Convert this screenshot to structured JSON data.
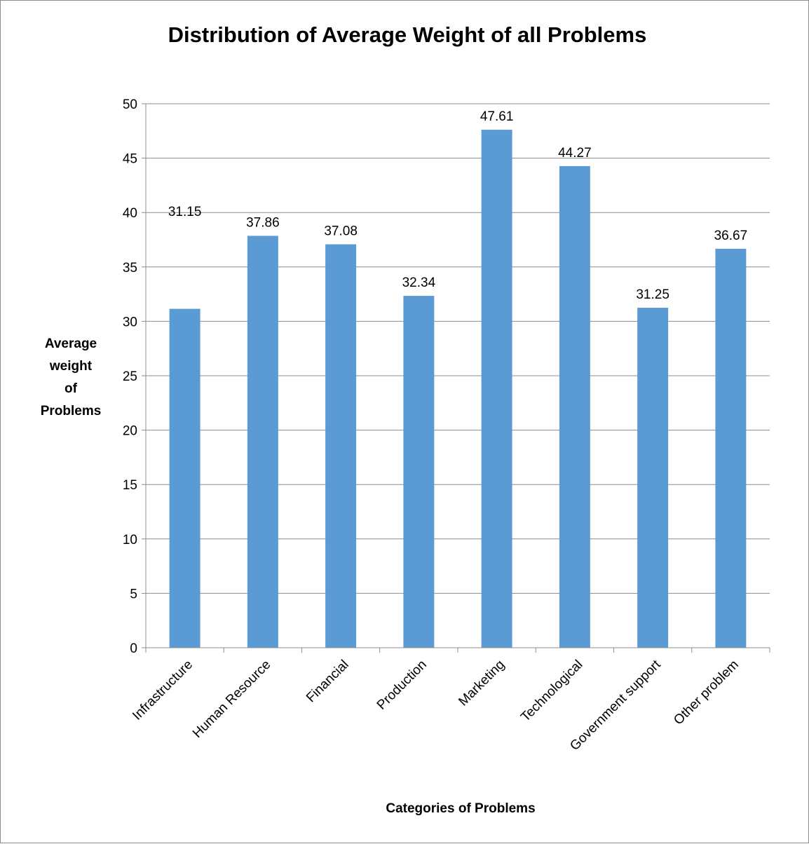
{
  "chart_data": {
    "type": "bar",
    "title": "Distribution of Average Weight of all Problems",
    "xlabel": "Categories of Problems",
    "ylabel_lines": [
      "Average",
      "weight",
      "of",
      "Problems"
    ],
    "categories": [
      "Infrastructure",
      "Human Resource",
      "Financial",
      "Production",
      "Marketing",
      "Technological",
      "Government support",
      "Other problem"
    ],
    "values": [
      31.15,
      37.86,
      37.08,
      32.34,
      47.61,
      44.27,
      31.25,
      36.67
    ],
    "data_labels": [
      "31.15",
      "37.86",
      "37.08",
      "32.34",
      "47.61",
      "44.27",
      "31.25",
      "36.67"
    ],
    "ylim": [
      0,
      50
    ],
    "yticks": [
      0,
      5,
      10,
      15,
      20,
      25,
      30,
      35,
      40,
      45,
      50
    ],
    "grid": true,
    "bar_color": "#5b9bd5",
    "grid_color": "#8c8c8c"
  }
}
